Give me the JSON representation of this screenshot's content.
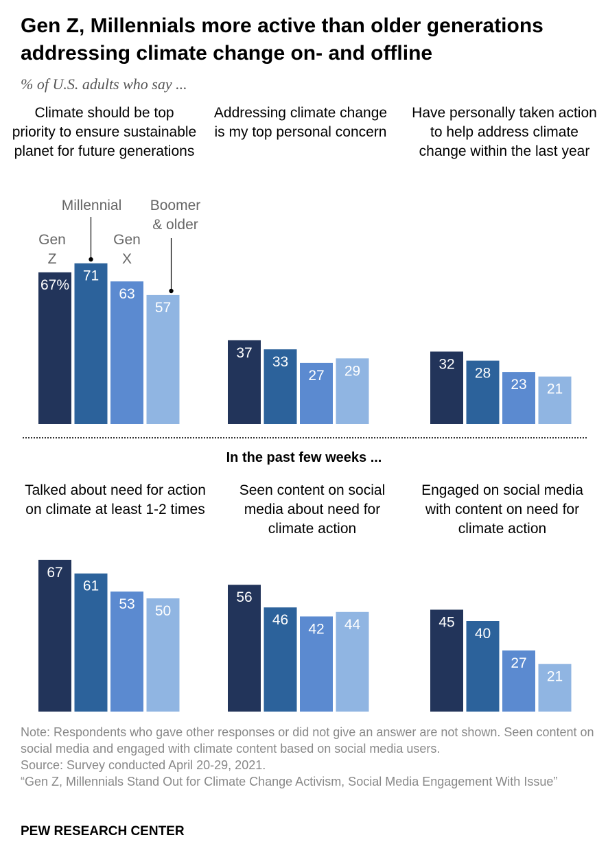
{
  "title": "Gen Z, Millennials more active than older generations addressing climate change on- and offline",
  "subtitle": "% of U.S. adults who say ...",
  "section_label": "In the past few weeks ...",
  "notes": {
    "note": "Note: Respondents who gave other responses or did not give an answer are not shown. Seen content on social media and engaged with climate content based on social media users.",
    "source": "Source: Survey conducted April 20-29, 2021.",
    "report": "“Gen Z, Millennials Stand Out for Climate Change Activism, Social Media Engagement With Issue”"
  },
  "brand": "PEW RESEARCH CENTER",
  "colors": {
    "gen_z": "#22345a",
    "millennial": "#2c629b",
    "gen_x": "#5b8ad0",
    "boomer": "#90b5e2"
  },
  "chart_data": [
    {
      "type": "bar",
      "title": "Climate should be top priority to ensure sustainable planet for future generations",
      "categories": [
        "Gen Z",
        "Millennial",
        "Gen X",
        "Boomer & older"
      ],
      "values": [
        67,
        71,
        63,
        57
      ],
      "value_labels": [
        "67%",
        "71",
        "63",
        "57"
      ]
    },
    {
      "type": "bar",
      "title": "Addressing climate change is my top personal concern",
      "categories": [
        "Gen Z",
        "Millennial",
        "Gen X",
        "Boomer & older"
      ],
      "values": [
        37,
        33,
        27,
        29
      ],
      "value_labels": [
        "37",
        "33",
        "27",
        "29"
      ]
    },
    {
      "type": "bar",
      "title": "Have personally taken action to help address climate change within the last year",
      "categories": [
        "Gen Z",
        "Millennial",
        "Gen X",
        "Boomer & older"
      ],
      "values": [
        32,
        28,
        23,
        21
      ],
      "value_labels": [
        "32",
        "28",
        "23",
        "21"
      ]
    },
    {
      "type": "bar",
      "title": "Talked about need for action on climate at least 1-2 times",
      "categories": [
        "Gen Z",
        "Millennial",
        "Gen X",
        "Boomer & older"
      ],
      "values": [
        67,
        61,
        53,
        50
      ],
      "value_labels": [
        "67",
        "61",
        "53",
        "50"
      ]
    },
    {
      "type": "bar",
      "title": "Seen content on social media about need for climate action",
      "categories": [
        "Gen Z",
        "Millennial",
        "Gen X",
        "Boomer & older"
      ],
      "values": [
        56,
        46,
        42,
        44
      ],
      "value_labels": [
        "56",
        "46",
        "42",
        "44"
      ]
    },
    {
      "type": "bar",
      "title": "Engaged on social media with content on need for climate action",
      "categories": [
        "Gen Z",
        "Millennial",
        "Gen X",
        "Boomer & older"
      ],
      "values": [
        45,
        40,
        27,
        21
      ],
      "value_labels": [
        "45",
        "40",
        "27",
        "21"
      ]
    }
  ],
  "generation_labels": {
    "gen_z": [
      "Gen",
      "Z"
    ],
    "millennial": [
      "Millennial"
    ],
    "gen_x": [
      "Gen",
      "X"
    ],
    "boomer": [
      "Boomer",
      "& older"
    ]
  }
}
